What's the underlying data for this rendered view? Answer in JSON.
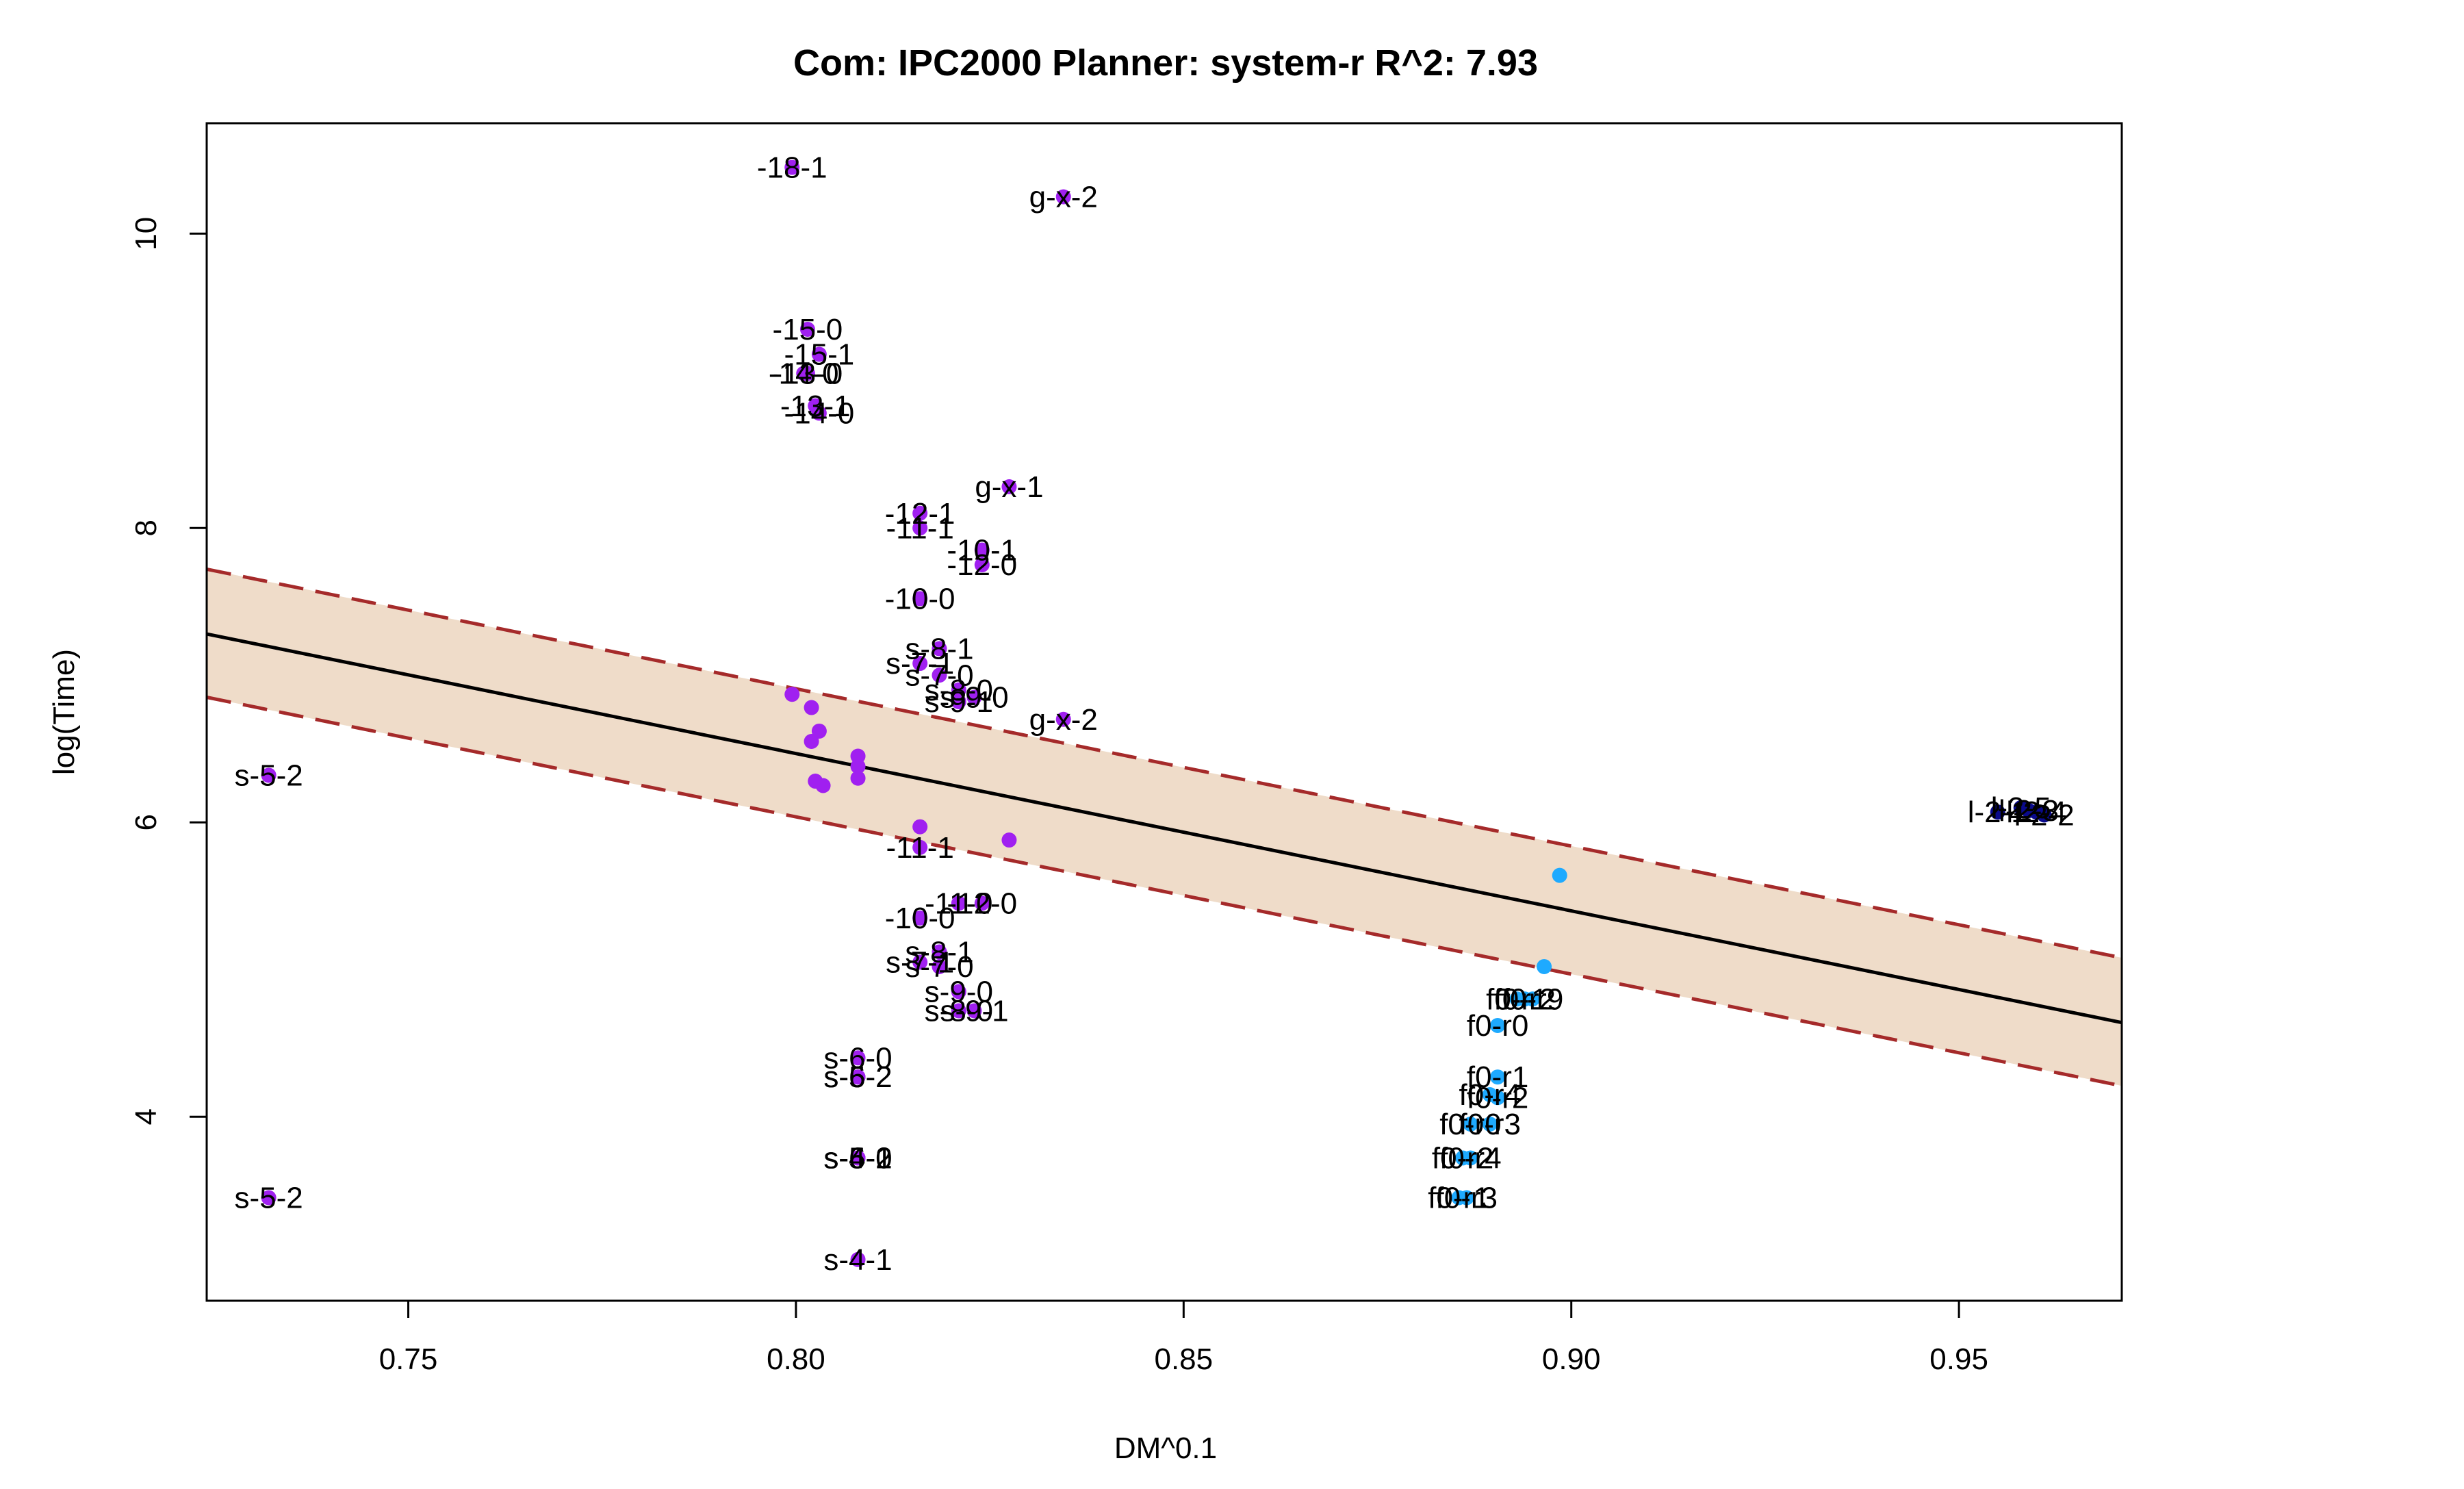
{
  "chart_data": {
    "type": "scatter",
    "title": "Com: IPC2000 Planner: system-r R^2: 7.93",
    "xlabel": "DM^0.1",
    "ylabel": "log(Time)",
    "xlim": [
      0.724,
      0.971
    ],
    "ylim": [
      2.75,
      10.75
    ],
    "x_ticks": [
      0.75,
      0.8,
      0.85,
      0.9,
      0.95
    ],
    "x_tick_labels": [
      "0.75",
      "0.80",
      "0.85",
      "0.90",
      "0.95"
    ],
    "y_ticks": [
      4,
      6,
      8,
      10
    ],
    "y_tick_labels": [
      "4",
      "6",
      "8",
      "10"
    ],
    "grid": false,
    "colors": {
      "purple": "#a020f0",
      "blue": "#1eaaff",
      "navy": "#0a0a8c",
      "band_fill": "#efdcc9",
      "band_edge": "#a52a2a",
      "fit_line": "#000000"
    },
    "fit": {
      "x": [
        0.724,
        0.971
      ],
      "y": [
        7.28,
        4.64
      ],
      "upper": [
        7.72,
        5.08
      ],
      "lower": [
        6.85,
        4.21
      ]
    },
    "points": [
      {
        "x": 0.7995,
        "y": 10.45,
        "label": "-18-1",
        "color": "purple"
      },
      {
        "x": 0.8345,
        "y": 10.25,
        "label": "g-x-2",
        "color": "purple"
      },
      {
        "x": 0.8015,
        "y": 9.35,
        "label": "-15-0",
        "color": "purple"
      },
      {
        "x": 0.803,
        "y": 9.18,
        "label": "-15-1",
        "color": "purple"
      },
      {
        "x": 0.8015,
        "y": 9.05,
        "label": "-13-0",
        "color": "purple"
      },
      {
        "x": 0.801,
        "y": 9.05,
        "label": "-14-0",
        "color": "purple"
      },
      {
        "x": 0.8025,
        "y": 8.83,
        "label": "-13-1",
        "color": "purple"
      },
      {
        "x": 0.803,
        "y": 8.78,
        "label": "-14-0",
        "color": "purple"
      },
      {
        "x": 0.8275,
        "y": 8.28,
        "label": "g-x-1",
        "color": "purple"
      },
      {
        "x": 0.816,
        "y": 8.1,
        "label": "-12-1",
        "color": "purple"
      },
      {
        "x": 0.816,
        "y": 8.0,
        "label": "-11-1",
        "color": "purple"
      },
      {
        "x": 0.824,
        "y": 7.85,
        "label": "-10-1",
        "color": "purple"
      },
      {
        "x": 0.824,
        "y": 7.75,
        "label": "-12-0",
        "color": "purple"
      },
      {
        "x": 0.816,
        "y": 7.52,
        "label": "-10-0",
        "color": "purple"
      },
      {
        "x": 0.8185,
        "y": 7.18,
        "label": "s-8-1",
        "color": "purple"
      },
      {
        "x": 0.816,
        "y": 7.08,
        "label": "s-7-1",
        "color": "purple"
      },
      {
        "x": 0.8185,
        "y": 7.0,
        "label": "s-7-0",
        "color": "purple"
      },
      {
        "x": 0.821,
        "y": 6.9,
        "label": "s-8-0",
        "color": "purple"
      },
      {
        "x": 0.823,
        "y": 6.85,
        "label": "s-9-0",
        "color": "purple"
      },
      {
        "x": 0.821,
        "y": 6.82,
        "label": "s-9-1",
        "color": "purple"
      },
      {
        "x": 0.8345,
        "y": 6.7,
        "label": "g-x-2",
        "color": "purple"
      },
      {
        "x": 0.732,
        "y": 6.32,
        "label": "s-5-2",
        "color": "purple"
      },
      {
        "x": 0.816,
        "y": 5.83,
        "label": "-11-1",
        "color": "purple"
      },
      {
        "x": 0.821,
        "y": 5.45,
        "label": "-11-0",
        "color": "purple"
      },
      {
        "x": 0.824,
        "y": 5.45,
        "label": "-12-0",
        "color": "purple"
      },
      {
        "x": 0.816,
        "y": 5.35,
        "label": "-10-0",
        "color": "purple"
      },
      {
        "x": 0.8185,
        "y": 5.12,
        "label": "s-8-1",
        "color": "purple"
      },
      {
        "x": 0.816,
        "y": 5.05,
        "label": "s-7-1",
        "color": "purple"
      },
      {
        "x": 0.8185,
        "y": 5.02,
        "label": "s-7-0",
        "color": "purple"
      },
      {
        "x": 0.821,
        "y": 4.85,
        "label": "s-9-0",
        "color": "purple"
      },
      {
        "x": 0.821,
        "y": 4.72,
        "label": "s-8-0",
        "color": "purple"
      },
      {
        "x": 0.823,
        "y": 4.72,
        "label": "s-9-1",
        "color": "purple"
      },
      {
        "x": 0.808,
        "y": 4.4,
        "label": "s-6-0",
        "color": "purple"
      },
      {
        "x": 0.808,
        "y": 4.27,
        "label": "s-6-2",
        "color": "purple"
      },
      {
        "x": 0.808,
        "y": 4.27,
        "label": "s-5-2",
        "color": "purple"
      },
      {
        "x": 0.808,
        "y": 3.72,
        "label": "s-6-1",
        "color": "purple"
      },
      {
        "x": 0.808,
        "y": 3.72,
        "label": "s-5-0",
        "color": "purple"
      },
      {
        "x": 0.808,
        "y": 3.72,
        "label": "s-4-2",
        "color": "purple"
      },
      {
        "x": 0.732,
        "y": 3.45,
        "label": "s-5-2",
        "color": "purple"
      },
      {
        "x": 0.808,
        "y": 3.03,
        "label": "s-4-1",
        "color": "purple"
      },
      {
        "x": 0.7995,
        "y": 6.87,
        "label": "",
        "color": "purple"
      },
      {
        "x": 0.802,
        "y": 6.78,
        "label": "",
        "color": "purple"
      },
      {
        "x": 0.803,
        "y": 6.62,
        "label": "",
        "color": "purple"
      },
      {
        "x": 0.802,
        "y": 6.55,
        "label": "",
        "color": "purple"
      },
      {
        "x": 0.808,
        "y": 6.45,
        "label": "",
        "color": "purple"
      },
      {
        "x": 0.808,
        "y": 6.38,
        "label": "",
        "color": "purple"
      },
      {
        "x": 0.808,
        "y": 6.3,
        "label": "",
        "color": "purple"
      },
      {
        "x": 0.8025,
        "y": 6.28,
        "label": "",
        "color": "purple"
      },
      {
        "x": 0.8035,
        "y": 6.25,
        "label": "",
        "color": "purple"
      },
      {
        "x": 0.816,
        "y": 5.97,
        "label": "",
        "color": "purple"
      },
      {
        "x": 0.8275,
        "y": 5.88,
        "label": "",
        "color": "purple"
      },
      {
        "x": 0.8985,
        "y": 5.64,
        "label": "",
        "color": "blue"
      },
      {
        "x": 0.8965,
        "y": 5.02,
        "label": "",
        "color": "blue"
      },
      {
        "x": 0.893,
        "y": 4.8,
        "label": "f0-r1",
        "color": "blue"
      },
      {
        "x": 0.894,
        "y": 4.8,
        "label": "f0-r2",
        "color": "blue"
      },
      {
        "x": 0.895,
        "y": 4.8,
        "label": "f0-r9",
        "color": "blue"
      },
      {
        "x": 0.8905,
        "y": 4.62,
        "label": "f0-r0",
        "color": "blue"
      },
      {
        "x": 0.8905,
        "y": 4.27,
        "label": "f0-r1",
        "color": "blue"
      },
      {
        "x": 0.8895,
        "y": 4.15,
        "label": "f0-r4",
        "color": "blue"
      },
      {
        "x": 0.8905,
        "y": 4.13,
        "label": "f0-r2",
        "color": "blue"
      },
      {
        "x": 0.887,
        "y": 3.95,
        "label": "f0-r0",
        "color": "blue"
      },
      {
        "x": 0.8895,
        "y": 3.95,
        "label": "f0-r3",
        "color": "blue"
      },
      {
        "x": 0.886,
        "y": 3.72,
        "label": "f0-r2",
        "color": "blue"
      },
      {
        "x": 0.887,
        "y": 3.72,
        "label": "f0-r4",
        "color": "blue"
      },
      {
        "x": 0.8855,
        "y": 3.45,
        "label": "f0-r1",
        "color": "blue"
      },
      {
        "x": 0.8865,
        "y": 3.45,
        "label": "f0-r3",
        "color": "blue"
      },
      {
        "x": 0.955,
        "y": 6.07,
        "label": "l-2-1",
        "color": "navy"
      },
      {
        "x": 0.958,
        "y": 6.1,
        "label": "l-2-5",
        "color": "navy"
      },
      {
        "x": 0.959,
        "y": 6.08,
        "label": "l-2-3",
        "color": "navy"
      },
      {
        "x": 0.96,
        "y": 6.07,
        "label": "l-2-4",
        "color": "navy"
      },
      {
        "x": 0.961,
        "y": 6.05,
        "label": "l-2-2",
        "color": "navy"
      }
    ]
  }
}
